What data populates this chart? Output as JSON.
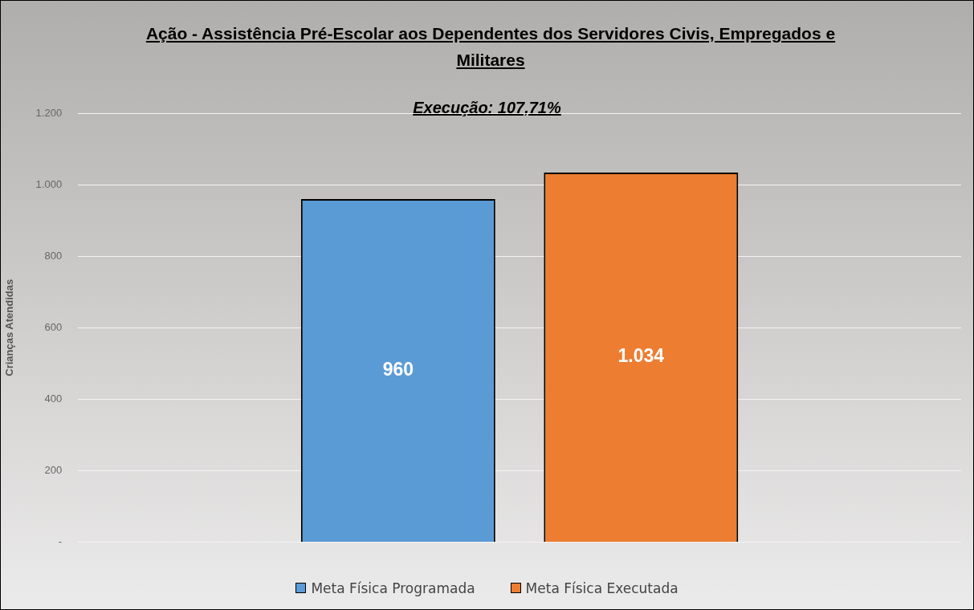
{
  "chart_data": {
    "type": "bar",
    "title": "Ação - Assistência Pré-Escolar aos Dependentes dos Servidores Civis, Empregados e Militares",
    "subtitle": "Execução: 107,71%",
    "ylabel": "Crianças Atendidas",
    "categories": [
      null
    ],
    "series": [
      {
        "name": "Meta Física Programada",
        "color": "#5b9bd5",
        "values": [
          960
        ],
        "value_labels": [
          "960"
        ]
      },
      {
        "name": "Meta Física Executada",
        "color": "#ed7d31",
        "values": [
          1034
        ],
        "value_labels": [
          "1.034"
        ]
      }
    ],
    "ylim": [
      0,
      1200
    ],
    "yticks": [
      {
        "value": 0,
        "label": "-"
      },
      200,
      400,
      600,
      800,
      {
        "value": 1000,
        "label": "1.000"
      },
      {
        "value": 1200,
        "label": "1.200"
      }
    ],
    "grid": "y",
    "legend": "bottom"
  }
}
